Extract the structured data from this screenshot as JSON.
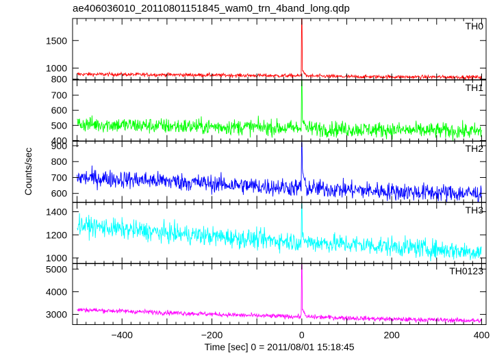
{
  "title": "ae406036010_20110801151845_wam0_trn_4band_long.qdp",
  "chart_data": {
    "type": "line",
    "title": "ae406036010_20110801151845_wam0_trn_4band_long.qdp",
    "xlabel": "Time [sec] 0 = 2011/08/01 15:18:45",
    "ylabel": "Counts/sec",
    "xlim": [
      -510,
      410
    ],
    "xticks": [
      -400,
      -200,
      0,
      200,
      400
    ],
    "grid": false,
    "panels": [
      {
        "name": "TH0",
        "color": "#ff0000",
        "ylim": [
          790,
          1900
        ],
        "yticks": [
          800,
          1000,
          1500
        ],
        "trend": [
          [
            -500,
            890
          ],
          [
            -300,
            880
          ],
          [
            -100,
            865
          ],
          [
            0,
            860
          ],
          [
            100,
            845
          ],
          [
            400,
            835
          ]
        ],
        "noise": 18,
        "spike": {
          "x": 0,
          "peak": 1900,
          "after": 980
        }
      },
      {
        "name": "TH1",
        "color": "#00ff00",
        "ylim": [
          395,
          800
        ],
        "yticks": [
          400,
          500,
          600,
          700
        ],
        "trend": [
          [
            -500,
            510
          ],
          [
            -300,
            495
          ],
          [
            -100,
            488
          ],
          [
            0,
            480
          ],
          [
            200,
            470
          ],
          [
            400,
            460
          ]
        ],
        "noise": 28,
        "spike": {
          "x": 0,
          "peak": 800,
          "after": 560
        }
      },
      {
        "name": "TH2",
        "color": "#0000ff",
        "ylim": [
          545,
          930
        ],
        "yticks": [
          600,
          700,
          800,
          900
        ],
        "trend": [
          [
            -500,
            700
          ],
          [
            -300,
            678
          ],
          [
            -100,
            645
          ],
          [
            0,
            635
          ],
          [
            200,
            612
          ],
          [
            400,
            598
          ]
        ],
        "noise": 30,
        "spike": {
          "x": 0,
          "peak": 920,
          "after": 760
        }
      },
      {
        "name": "TH3",
        "color": "#00ffff",
        "ylim": [
          950,
          1480
        ],
        "yticks": [
          1000,
          1200,
          1400
        ],
        "trend": [
          [
            -500,
            1285
          ],
          [
            -300,
            1215
          ],
          [
            -100,
            1160
          ],
          [
            0,
            1140
          ],
          [
            200,
            1100
          ],
          [
            400,
            1050
          ]
        ],
        "noise": 45,
        "spike": {
          "x": 0,
          "peak": 1470,
          "after": 1200
        }
      },
      {
        "name": "TH0123",
        "color": "#ff00ff",
        "ylim": [
          2550,
          5250
        ],
        "yticks": [
          3000,
          4000,
          5000
        ],
        "trend": [
          [
            -500,
            3210
          ],
          [
            -300,
            3080
          ],
          [
            -100,
            2940
          ],
          [
            0,
            2900
          ],
          [
            200,
            2790
          ],
          [
            400,
            2720
          ]
        ],
        "noise": 55,
        "spike": {
          "x": 0,
          "peak": 5200,
          "after": 3300
        }
      }
    ]
  }
}
